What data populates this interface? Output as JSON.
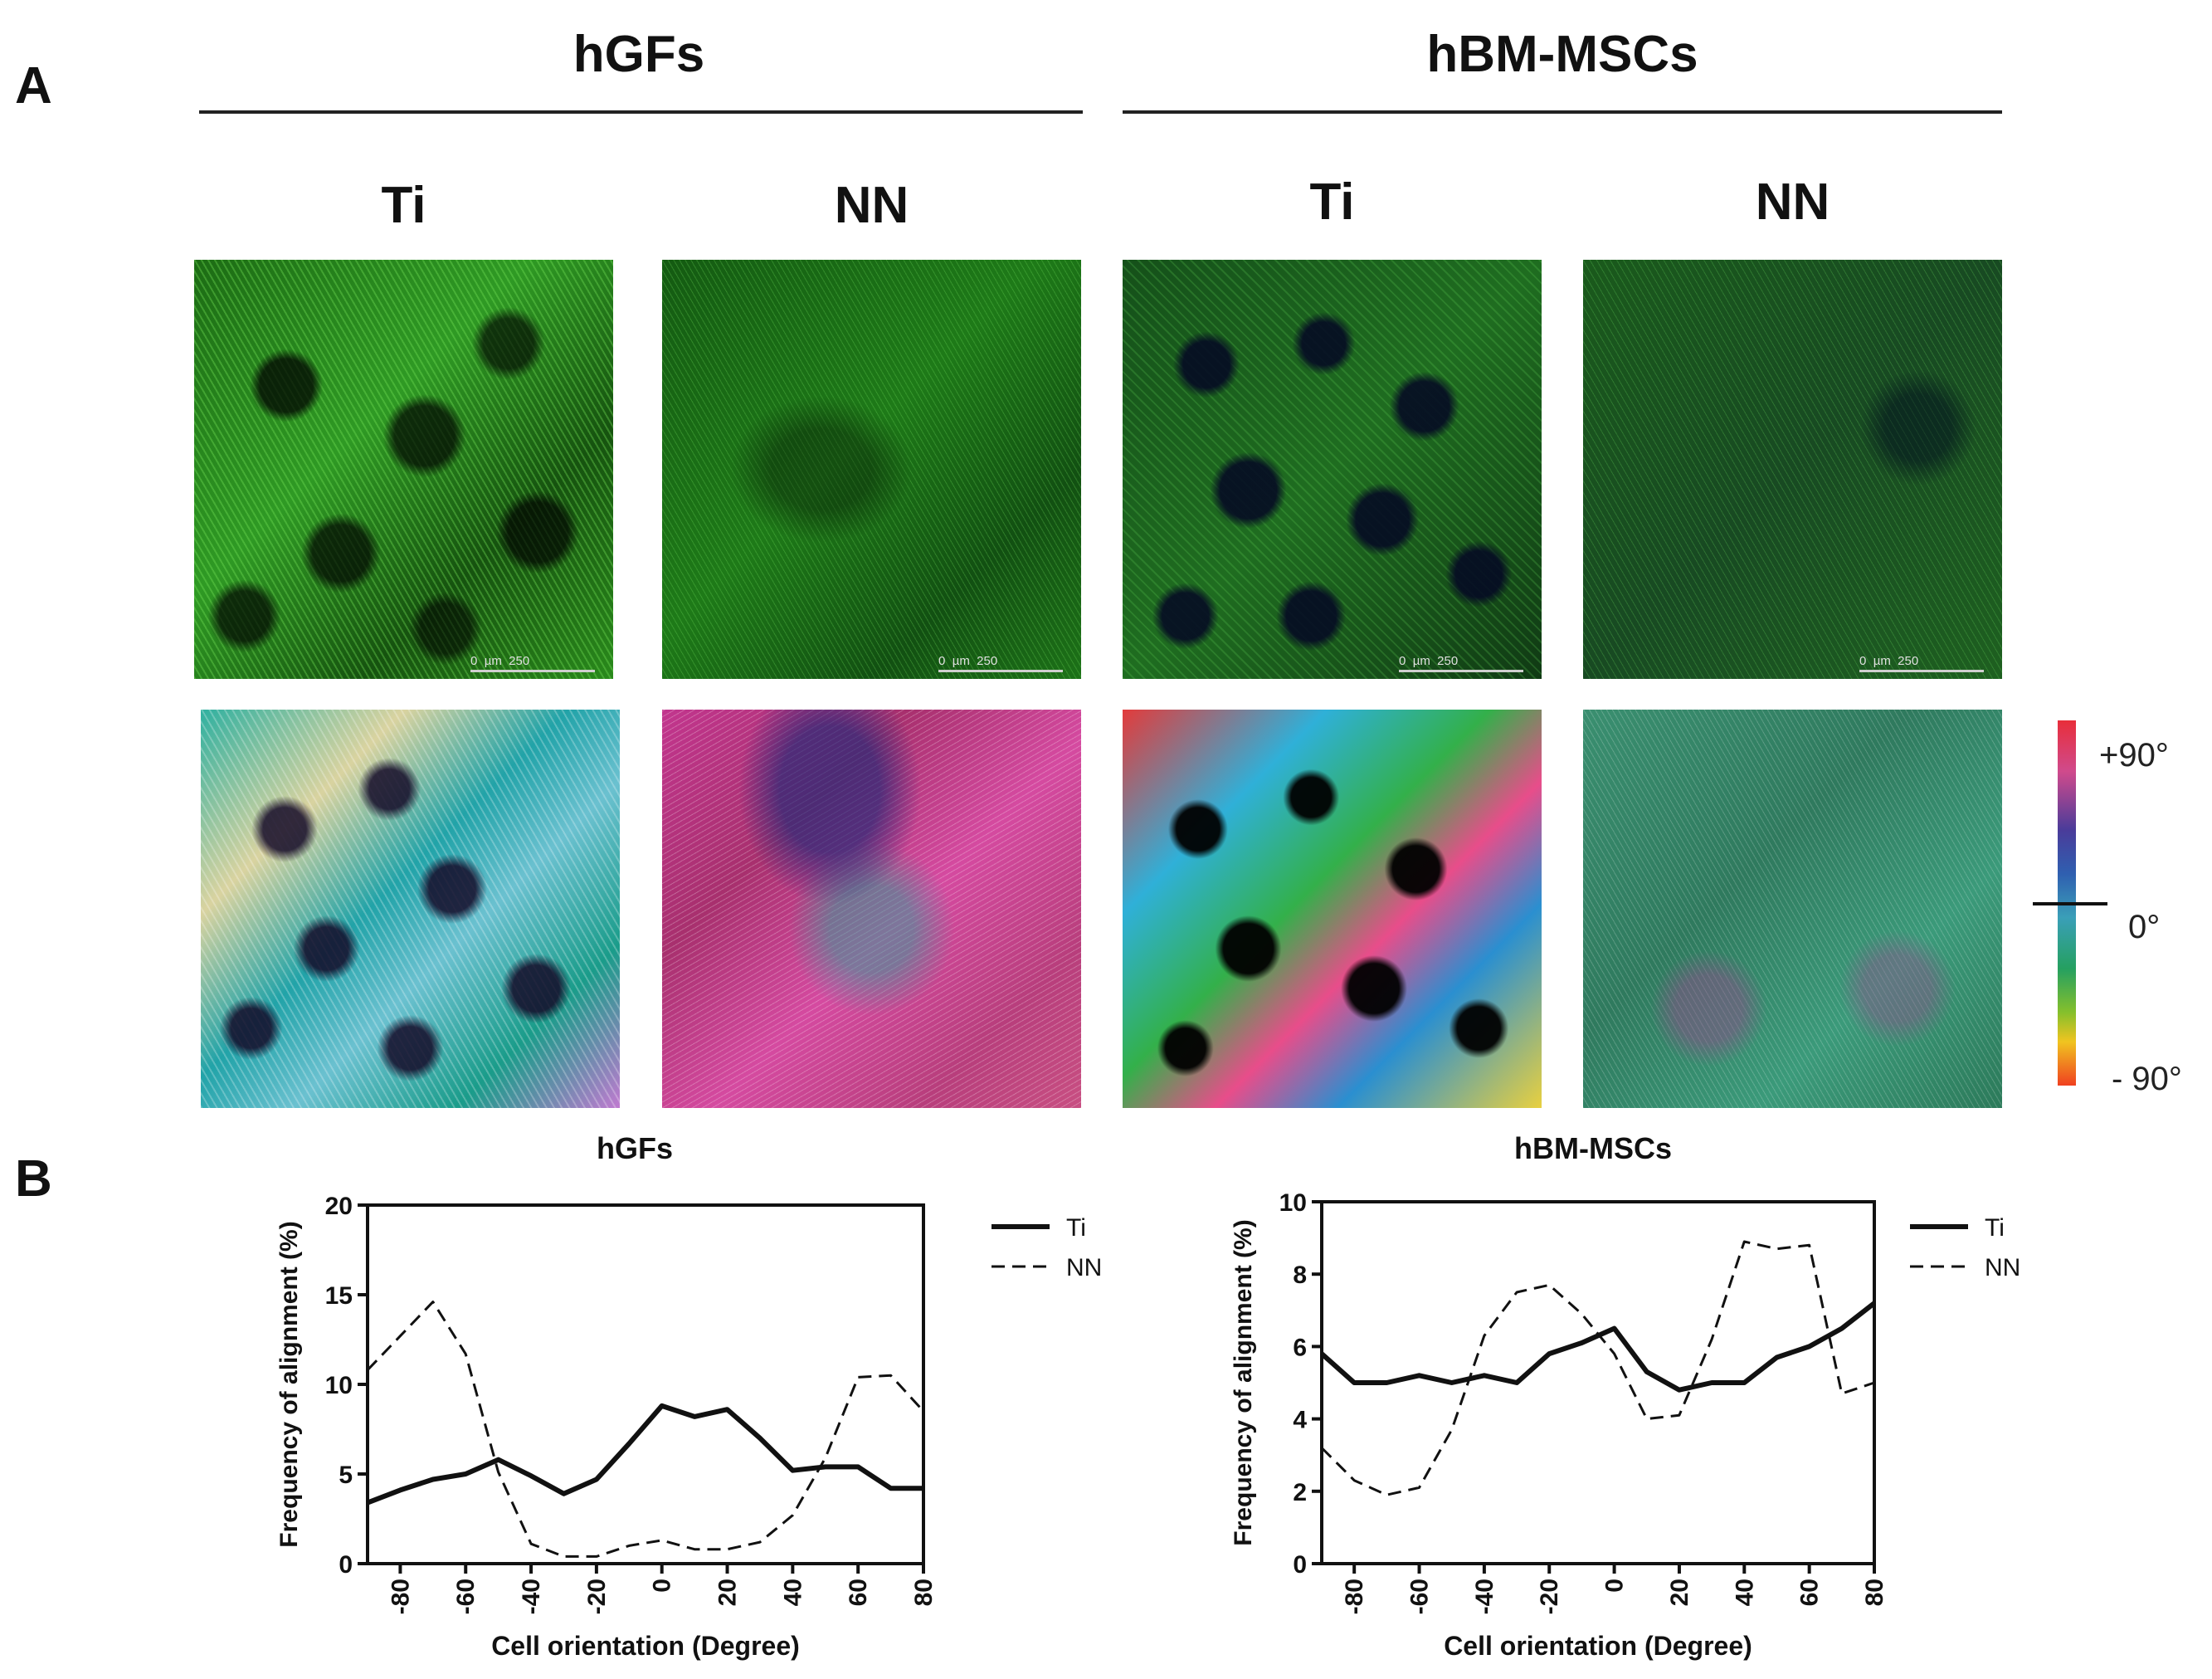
{
  "panel_labels": {
    "a": "A",
    "b": "B"
  },
  "groups": [
    {
      "title": "hGFs",
      "conditions": [
        "Ti",
        "NN"
      ]
    },
    {
      "title": "hBM-MSCs",
      "conditions": [
        "Ti",
        "NN"
      ]
    }
  ],
  "scale_bar": {
    "start": "0",
    "unit": "µm",
    "end": "250"
  },
  "colorbar": {
    "top_label": "+90°",
    "mid_label": "0°",
    "bottom_label": "- 90°"
  },
  "chart_data": [
    {
      "type": "line",
      "title": "hGFs",
      "xlabel": "Cell orientation (Degree)",
      "ylabel": "Frequency of alignment (%)",
      "xlim": [
        -90,
        80
      ],
      "ylim": [
        0,
        20
      ],
      "xticks": [
        -80,
        -60,
        -40,
        -20,
        0,
        20,
        40,
        60,
        80
      ],
      "yticks": [
        0,
        5,
        10,
        15,
        20
      ],
      "legend_position": "top-right",
      "x": [
        -90,
        -80,
        -70,
        -60,
        -50,
        -40,
        -30,
        -20,
        -10,
        0,
        10,
        20,
        30,
        40,
        50,
        60,
        70,
        80
      ],
      "series": [
        {
          "name": "Ti",
          "style": "solid",
          "values": [
            3.4,
            4.1,
            4.7,
            5.0,
            5.8,
            4.9,
            3.9,
            4.7,
            6.7,
            8.8,
            8.2,
            8.6,
            7.0,
            5.2,
            5.4,
            5.4,
            4.2,
            4.2
          ]
        },
        {
          "name": "NN",
          "style": "dashed",
          "values": [
            10.8,
            12.7,
            14.6,
            11.7,
            5.1,
            1.1,
            0.4,
            0.4,
            1.0,
            1.3,
            0.8,
            0.8,
            1.2,
            2.7,
            5.9,
            10.4,
            10.5,
            8.5
          ]
        }
      ]
    },
    {
      "type": "line",
      "title": "hBM-MSCs",
      "xlabel": "Cell orientation (Degree)",
      "ylabel": "Frequency of alignment (%)",
      "xlim": [
        -90,
        80
      ],
      "ylim": [
        0,
        10
      ],
      "xticks": [
        -80,
        -60,
        -40,
        -20,
        0,
        20,
        40,
        60,
        80
      ],
      "yticks": [
        0,
        2,
        4,
        6,
        8,
        10
      ],
      "legend_position": "top-right",
      "x": [
        -90,
        -80,
        -70,
        -60,
        -50,
        -40,
        -30,
        -20,
        -10,
        0,
        10,
        20,
        30,
        40,
        50,
        60,
        70,
        80
      ],
      "series": [
        {
          "name": "Ti",
          "style": "solid",
          "values": [
            5.8,
            5.0,
            5.0,
            5.2,
            5.0,
            5.2,
            5.0,
            5.8,
            6.1,
            6.5,
            5.3,
            4.8,
            5.0,
            5.0,
            5.7,
            6.0,
            6.5,
            7.2
          ]
        },
        {
          "name": "NN",
          "style": "dashed",
          "values": [
            3.2,
            2.3,
            1.9,
            2.1,
            3.7,
            6.3,
            7.5,
            7.7,
            6.9,
            5.8,
            4.0,
            4.1,
            6.2,
            8.9,
            8.7,
            8.8,
            4.7,
            5.0
          ]
        }
      ]
    }
  ]
}
